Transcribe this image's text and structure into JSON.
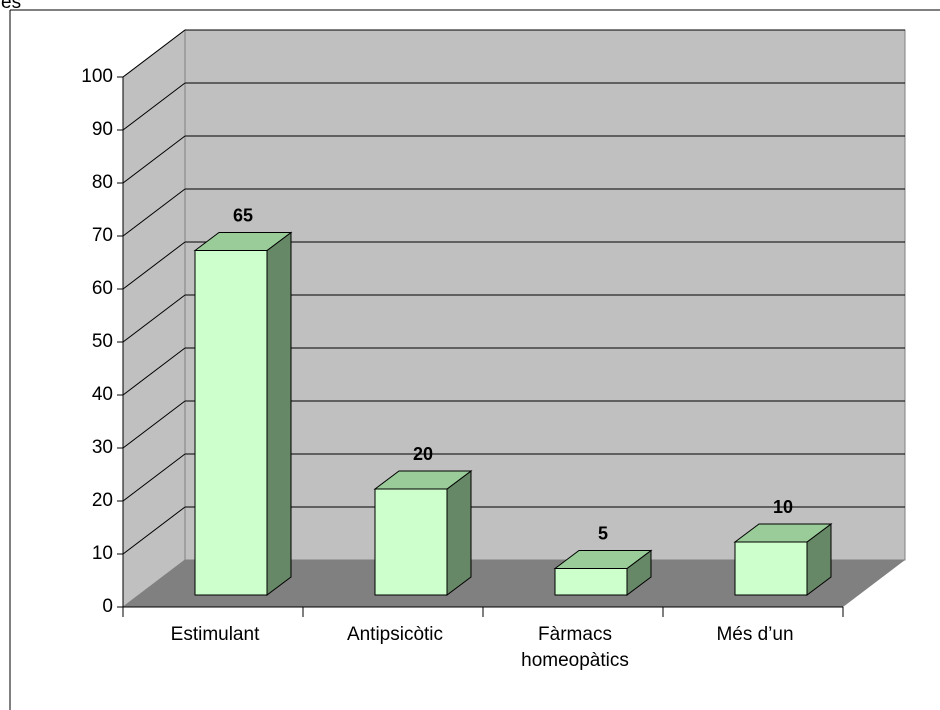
{
  "chart_data": {
    "type": "bar3d",
    "y_label": "es",
    "categories": [
      "Estimulant",
      "Antipsicòtic",
      "Fàrmacs homeopàtics",
      "Més d’un"
    ],
    "values": [
      65,
      20,
      5,
      10
    ],
    "color": "#ccffcc",
    "ylim": [
      0,
      100
    ],
    "yticks": [
      0,
      10,
      20,
      30,
      40,
      50,
      60,
      70,
      80,
      90,
      100
    ],
    "grid": true
  }
}
